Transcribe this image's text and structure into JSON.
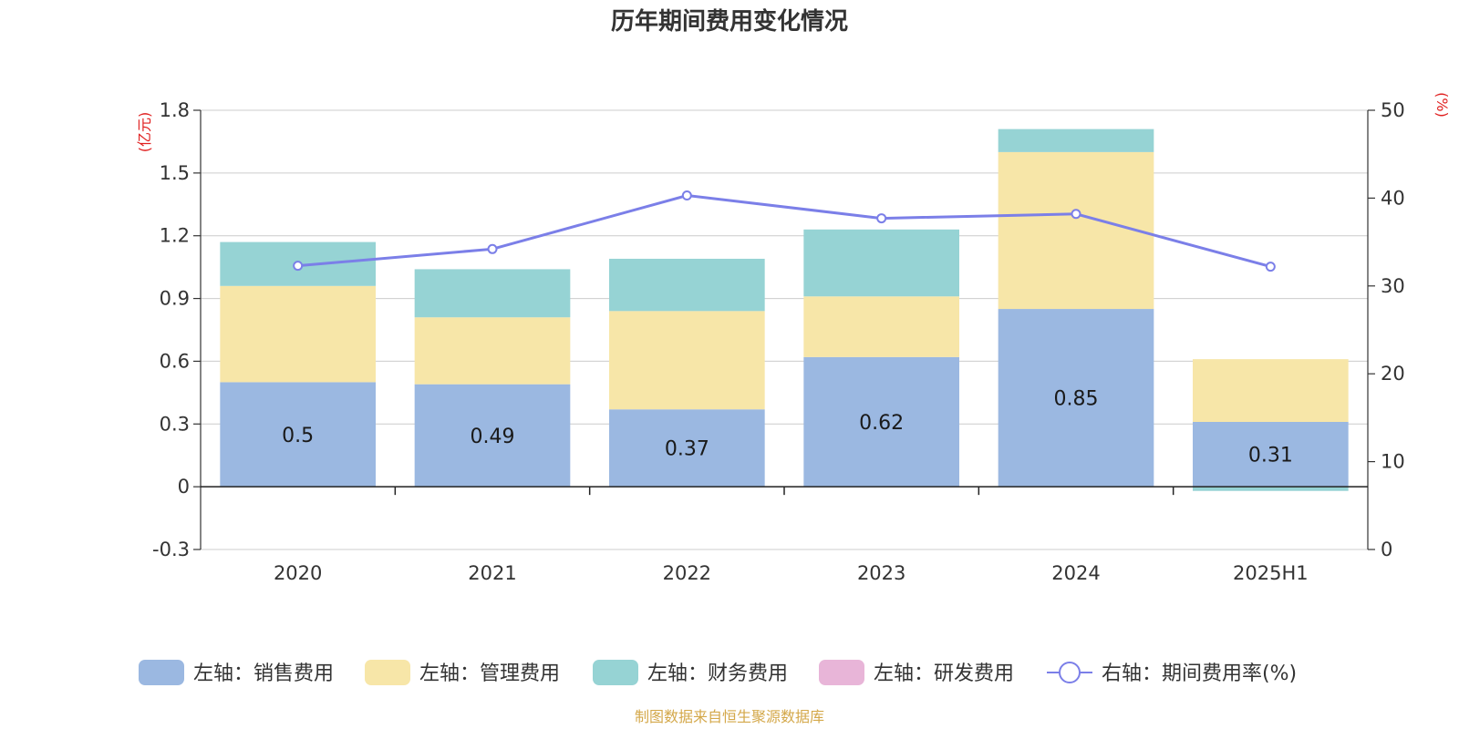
{
  "chart_data": {
    "type": "bar",
    "title": "历年期间费用变化情况",
    "categories": [
      "2020",
      "2021",
      "2022",
      "2023",
      "2024",
      "2025H1"
    ],
    "left_axis": {
      "unit": "(亿元)",
      "ylim": [
        -0.3,
        1.8
      ],
      "ticks": [
        "1.8",
        "1.5",
        "1.2",
        "0.9",
        "0.6",
        "0.3",
        "0",
        "-0.3"
      ],
      "tick_values": [
        1.8,
        1.5,
        1.2,
        0.9,
        0.6,
        0.3,
        0,
        -0.3
      ]
    },
    "right_axis": {
      "unit": "(%)",
      "ylim": [
        0,
        50
      ],
      "ticks": [
        "50",
        "40",
        "30",
        "20",
        "10",
        "0"
      ],
      "tick_values": [
        50,
        40,
        30,
        20,
        10,
        0
      ]
    },
    "series": [
      {
        "name": "左轴：销售费用",
        "type": "stacked-bar",
        "axis": "left",
        "color": "#9bb8e1",
        "values": [
          0.5,
          0.49,
          0.37,
          0.62,
          0.85,
          0.31
        ],
        "labels": [
          "0.5",
          "0.49",
          "0.37",
          "0.62",
          "0.85",
          "0.31"
        ]
      },
      {
        "name": "左轴：管理费用",
        "type": "stacked-bar",
        "axis": "left",
        "color": "#f7e6a8",
        "values": [
          0.46,
          0.32,
          0.47,
          0.29,
          0.75,
          0.3
        ]
      },
      {
        "name": "左轴：财务费用",
        "type": "stacked-bar",
        "axis": "left",
        "color": "#96d3d4",
        "values": [
          0.21,
          0.23,
          0.25,
          0.32,
          0.11,
          -0.02
        ]
      },
      {
        "name": "左轴：研发费用",
        "type": "stacked-bar",
        "axis": "left",
        "color": "#e8b5d8",
        "values": [
          0,
          0,
          0,
          0,
          0,
          0
        ]
      },
      {
        "name": "右轴：期间费用率(%)",
        "type": "line",
        "axis": "right",
        "color": "#7b7fe8",
        "values": [
          32.3,
          34.2,
          40.3,
          37.7,
          38.2,
          32.2
        ]
      }
    ],
    "legend_position": "bottom",
    "grid": true
  },
  "source": "制图数据来自恒生聚源数据库",
  "colors": {
    "axis_unit": "#e02020",
    "source_text": "#d4a84a",
    "grid": "#cccccc",
    "axis": "#333333"
  }
}
